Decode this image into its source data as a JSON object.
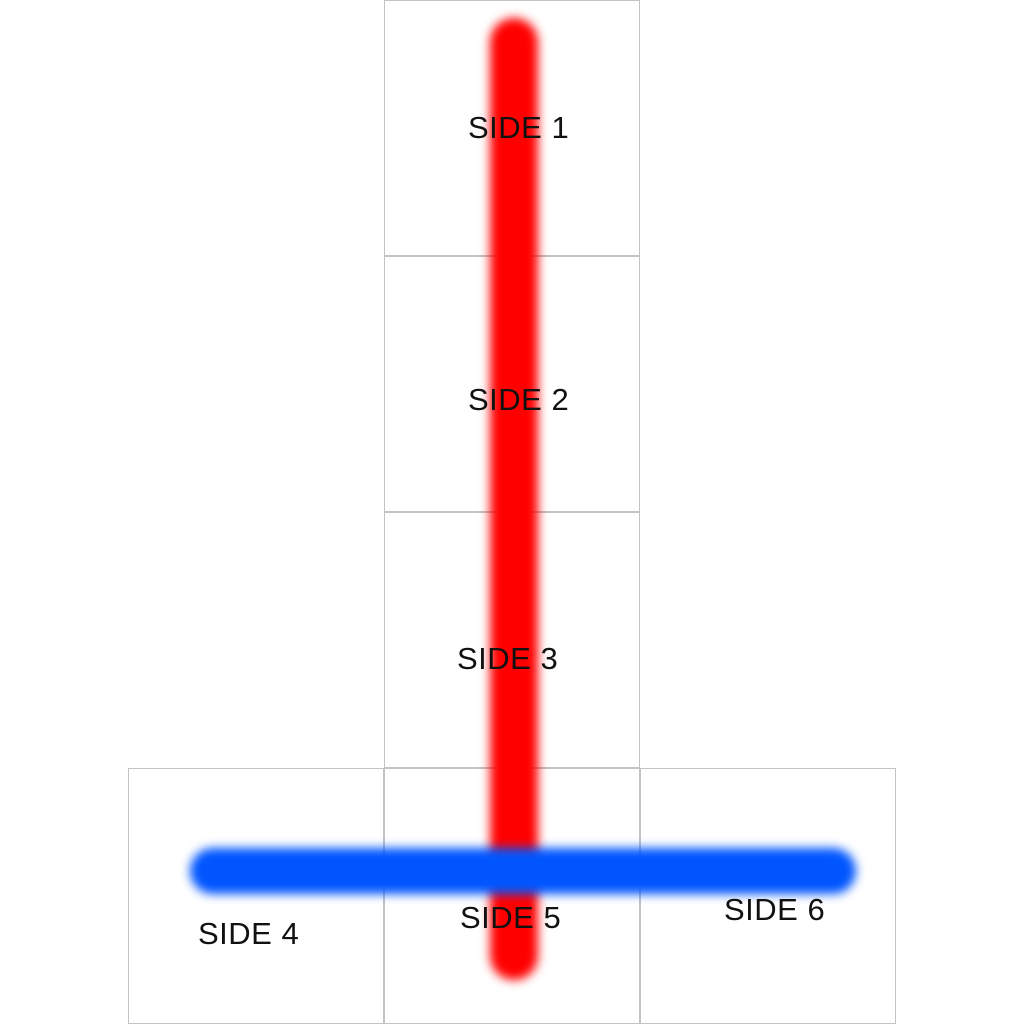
{
  "net": {
    "faces": [
      {
        "id": "side-1",
        "label": "SIDE 1"
      },
      {
        "id": "side-2",
        "label": "SIDE 2"
      },
      {
        "id": "side-3",
        "label": "SIDE 3"
      },
      {
        "id": "side-4",
        "label": "SIDE 4"
      },
      {
        "id": "side-5",
        "label": "SIDE 5"
      },
      {
        "id": "side-6",
        "label": "SIDE 6"
      }
    ],
    "stripes": {
      "vertical": {
        "color": "#ff0000"
      },
      "horizontal": {
        "color": "#0055ff"
      }
    },
    "border_color": "#c4c4c4"
  }
}
